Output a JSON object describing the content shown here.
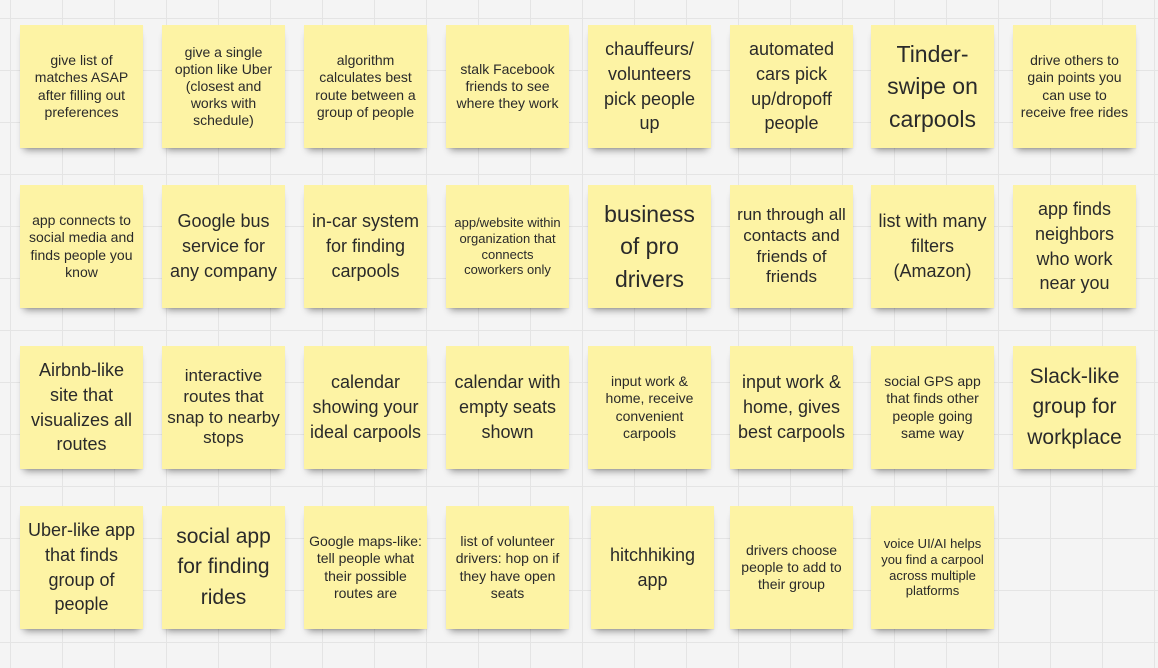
{
  "board": {
    "notes": [
      {
        "text": "give list of matches ASAP after filling out preferences"
      },
      {
        "text": "give a single option like Uber (closest and works with schedule)"
      },
      {
        "text": "algorithm calculates best route between a group of people"
      },
      {
        "text": "stalk Facebook friends to see where they work"
      },
      {
        "text": "chauffeurs/ volunteers pick people up"
      },
      {
        "text": "automated cars pick up/dropoff people"
      },
      {
        "text": "Tinder-swipe on carpools"
      },
      {
        "text": "drive others to gain points you can use to receive free rides"
      },
      {
        "text": "app connects to social media and finds people you know"
      },
      {
        "text": "Google bus service for any company"
      },
      {
        "text": "in-car system for finding carpools"
      },
      {
        "text": "app/website within organization that connects coworkers only"
      },
      {
        "text": "business of pro drivers"
      },
      {
        "text": "run through all contacts and friends of friends"
      },
      {
        "text": "list with many filters (Amazon)"
      },
      {
        "text": "app finds neighbors who work near you"
      },
      {
        "text": "Airbnb-like site that visualizes all routes"
      },
      {
        "text": "interactive routes that snap to nearby stops"
      },
      {
        "text": "calendar showing your ideal carpools"
      },
      {
        "text": "calendar with empty seats shown"
      },
      {
        "text": "input work & home, receive convenient carpools"
      },
      {
        "text": "input work & home, gives best carpools"
      },
      {
        "text": "social GPS app that finds other people going same way"
      },
      {
        "text": "Slack-like group for workplace"
      },
      {
        "text": "Uber-like app that finds group of people"
      },
      {
        "text": "social app for finding rides"
      },
      {
        "text": "Google maps-like: tell people what their possible routes are"
      },
      {
        "text": "list of volunteer drivers: hop on if they have open seats"
      },
      {
        "text": "hitchhiking app"
      },
      {
        "text": "drivers choose people to add to their group"
      },
      {
        "text": "voice UI/AI helps you find a carpool across multiple platforms"
      }
    ]
  }
}
